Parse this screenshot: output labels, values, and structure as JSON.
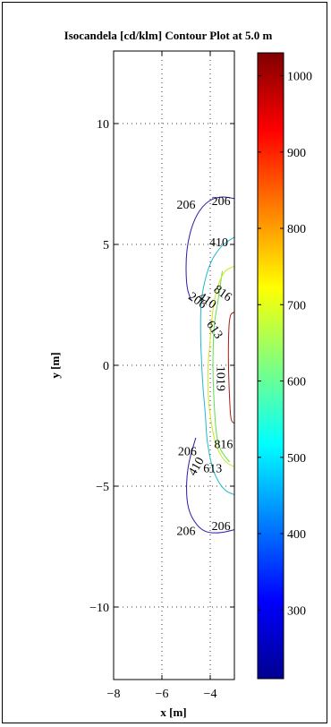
{
  "chart_data": {
    "type": "contour",
    "title": "Isocandela [cd/klm] Contour Plot at 5.0 m",
    "xlabel": "x [m]",
    "ylabel": "y [m]",
    "xlim": [
      -8,
      -3
    ],
    "ylim": [
      -13,
      13
    ],
    "x_ticks": [
      -8,
      -6,
      -4
    ],
    "x_tick_labels": [
      "−8",
      "−6",
      "−4"
    ],
    "y_ticks": [
      -10,
      -5,
      0,
      5,
      10
    ],
    "y_tick_labels": [
      "−10",
      "−5",
      "0",
      "5",
      "10"
    ],
    "grid": "dotted",
    "colorbar": {
      "range": [
        210,
        1030
      ],
      "ticks": [
        300,
        400,
        500,
        600,
        700,
        800,
        900,
        1000
      ],
      "tick_labels": [
        "300",
        "400",
        "500",
        "600",
        "700",
        "800",
        "900",
        "1000"
      ]
    },
    "contours": [
      {
        "level": 206,
        "color": "#2a1aa8",
        "points": [
          [
            -3.0,
            6.9
          ],
          [
            -3.6,
            7.0
          ],
          [
            -4.2,
            6.75
          ],
          [
            -4.7,
            6.0
          ],
          [
            -5.0,
            4.8
          ],
          [
            -5.0,
            3.3
          ],
          [
            -4.8,
            2.7
          ]
        ]
      },
      {
        "level": 206,
        "color": "#2a1aa8",
        "points": [
          [
            -4.6,
            -3.0
          ],
          [
            -4.95,
            -4.2
          ],
          [
            -5.0,
            -5.5
          ],
          [
            -4.8,
            -6.3
          ],
          [
            -4.3,
            -6.9
          ],
          [
            -3.6,
            -6.95
          ],
          [
            -3.0,
            -6.8
          ]
        ]
      },
      {
        "level": 410,
        "color": "#1fb8ce",
        "points": [
          [
            -3.0,
            5.3
          ],
          [
            -3.5,
            5.0
          ],
          [
            -4.0,
            4.3
          ],
          [
            -4.3,
            3.2
          ],
          [
            -4.4,
            2.4
          ],
          [
            -4.4,
            1.0
          ],
          [
            -4.35,
            0.0
          ],
          [
            -4.3,
            -1.0
          ],
          [
            -4.2,
            -2.0
          ],
          [
            -4.15,
            -3.0
          ],
          [
            -4.0,
            -3.9
          ],
          [
            -3.8,
            -4.6
          ],
          [
            -3.4,
            -5.2
          ],
          [
            -3.0,
            -5.35
          ]
        ]
      },
      {
        "level": 613,
        "color": "#5ee04a",
        "points": [
          [
            -3.5,
            3.9
          ],
          [
            -3.7,
            2.5
          ],
          [
            -3.85,
            1.7
          ],
          [
            -3.9,
            0.0
          ],
          [
            -3.85,
            -1.5
          ],
          [
            -3.75,
            -2.9
          ],
          [
            -3.6,
            -3.5
          ],
          [
            -3.2,
            -4.0
          ]
        ]
      },
      {
        "level": 816,
        "color": "#cfe61a",
        "points": [
          [
            -3.0,
            4.1
          ],
          [
            -3.45,
            3.9
          ],
          [
            -3.75,
            3.1
          ],
          [
            -3.9,
            2.3
          ],
          [
            -4.0,
            1.0
          ],
          [
            -4.1,
            0.0
          ],
          [
            -4.1,
            -1.2
          ],
          [
            -3.95,
            -2.5
          ],
          [
            -3.75,
            -3.4
          ],
          [
            -3.4,
            -4.0
          ],
          [
            -3.0,
            -4.2
          ]
        ]
      },
      {
        "level": 1019,
        "color": "#a81a14",
        "points": [
          [
            -3.0,
            2.2
          ],
          [
            -3.2,
            2.1
          ],
          [
            -3.25,
            1.0
          ],
          [
            -3.25,
            0.0
          ],
          [
            -3.2,
            -1.4
          ],
          [
            -3.15,
            -2.3
          ],
          [
            -3.0,
            -2.4
          ]
        ]
      }
    ],
    "contour_labels": [
      {
        "text": "206",
        "x": -5.0,
        "y": 6.6,
        "angle": 0
      },
      {
        "text": "206",
        "x": -3.55,
        "y": 6.75,
        "angle": 0
      },
      {
        "text": "410",
        "x": -3.65,
        "y": 5.05,
        "angle": 0
      },
      {
        "text": "206",
        "x": -4.55,
        "y": 2.65,
        "angle": 35
      },
      {
        "text": "410",
        "x": -4.15,
        "y": 2.65,
        "angle": 35
      },
      {
        "text": "816",
        "x": -3.5,
        "y": 2.95,
        "angle": 35
      },
      {
        "text": "613",
        "x": -3.85,
        "y": 1.45,
        "angle": 55
      },
      {
        "text": "1019",
        "x": -3.6,
        "y": -0.55,
        "angle": 90
      },
      {
        "text": "206",
        "x": -4.95,
        "y": -3.6,
        "angle": 0
      },
      {
        "text": "410",
        "x": -4.55,
        "y": -4.2,
        "angle": -60
      },
      {
        "text": "816",
        "x": -3.45,
        "y": -3.3,
        "angle": 0
      },
      {
        "text": "613",
        "x": -3.9,
        "y": -4.3,
        "angle": 0
      },
      {
        "text": "206",
        "x": -5.0,
        "y": -6.9,
        "angle": 0
      },
      {
        "text": "206",
        "x": -3.55,
        "y": -6.7,
        "angle": 0
      }
    ]
  }
}
